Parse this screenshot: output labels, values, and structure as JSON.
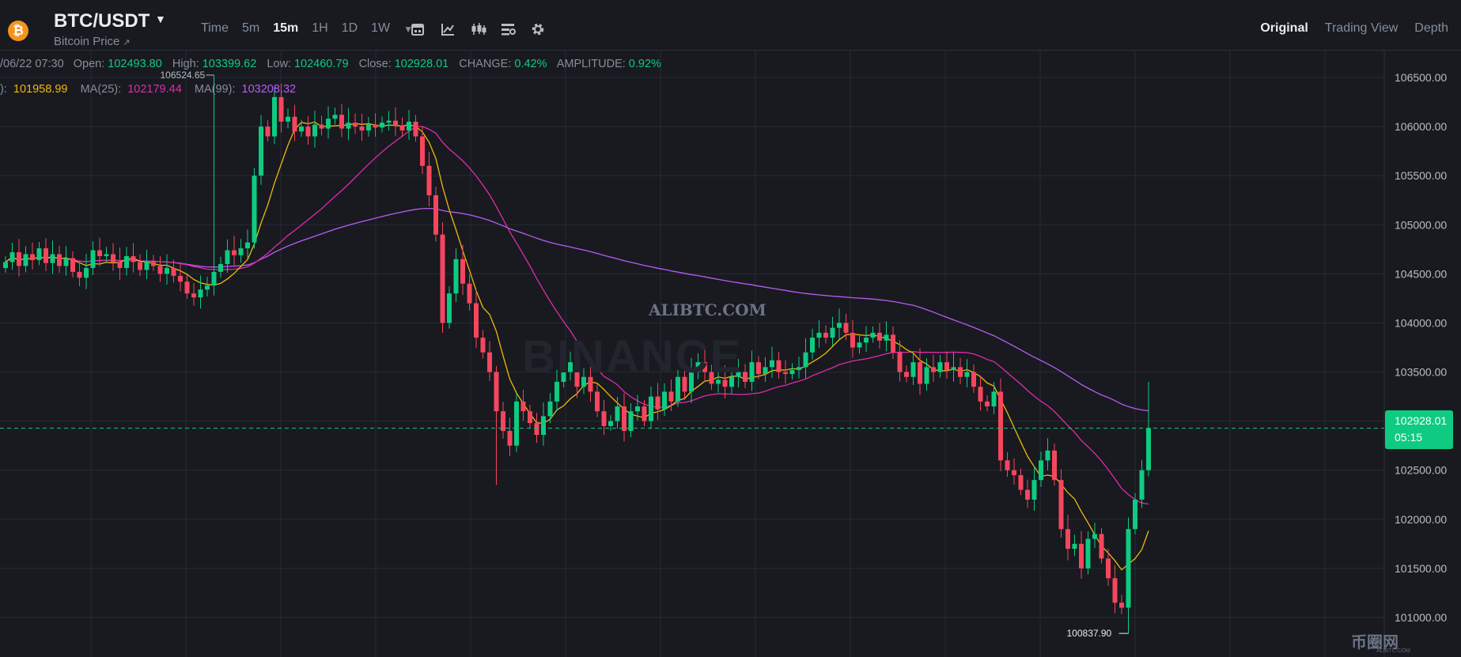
{
  "header": {
    "logo_glyph": "₿",
    "pair": "BTC/USDT",
    "subtitle": "Bitcoin Price",
    "subtitle_arrow": "↗",
    "intervals": [
      "Time",
      "5m",
      "15m",
      "1H",
      "1D",
      "1W"
    ],
    "active_interval": "15m",
    "tool_icons": [
      "calendar-icon",
      "indicator-chart-icon",
      "candlestick-type-icon",
      "layout-settings-icon",
      "gear-icon"
    ],
    "views": [
      "Original",
      "Trading View",
      "Depth"
    ],
    "active_view": "Original"
  },
  "ohlc": {
    "date": "/06/22 07:30",
    "open_label": "Open:",
    "open": "102493.80",
    "high_label": "High:",
    "high": "103399.62",
    "low_label": "Low:",
    "low": "102460.79",
    "close_label": "Close:",
    "close": "102928.01",
    "change_label": "CHANGE:",
    "change": "0.42%",
    "amplitude_label": "AMPLITUDE:",
    "amplitude": "0.92%"
  },
  "ma_row": {
    "ma7_prefix": "):",
    "ma7": "101958.99",
    "ma25_label": "MA(25):",
    "ma25": "102179.44",
    "ma99_label": "MA(99):",
    "ma99": "103208.32"
  },
  "price_tag": {
    "price": "102928.01",
    "countdown": "05:15"
  },
  "watermark": {
    "site": "ALIBTC.COM",
    "brand": "BINANCE"
  },
  "corner_logo": {
    "text": "币圈网",
    "sub": "ALIBTC.COM"
  },
  "colors": {
    "up": "#0ecb81",
    "down": "#f6465d",
    "ma7": "#f0b90b",
    "ma25": "#e02bab",
    "ma99": "#b85cf5",
    "background": "#181a20",
    "grid": "#262a33"
  },
  "chart_data": {
    "type": "candlestick",
    "interval": "15m",
    "ylim": [
      100700,
      106800
    ],
    "y_ticks": [
      101000,
      101500,
      102000,
      102500,
      103000,
      103500,
      104000,
      104500,
      105000,
      105500,
      106000,
      106500
    ],
    "y_tick_labels": [
      "101000.00",
      "101500.00",
      "102000.00",
      "102500.00",
      "103000.00",
      "103500.00",
      "104000.00",
      "104500.00",
      "105000.00",
      "105500.00",
      "106000.00",
      "106500.00"
    ],
    "annotations": {
      "high_label": "106524.65",
      "high_value": 106524.65,
      "low_label": "100837.90",
      "low_value": 100837.9
    },
    "current_price": 102928.01,
    "close_path": [
      104620,
      104720,
      104580,
      104700,
      104640,
      104760,
      104610,
      104700,
      104580,
      104660,
      104520,
      104460,
      104560,
      104740,
      104680,
      104700,
      104620,
      104560,
      104680,
      104620,
      104540,
      104630,
      104580,
      104500,
      104560,
      104480,
      104420,
      104300,
      104260,
      104340,
      104380,
      104520,
      104600,
      104740,
      104690,
      104760,
      104820,
      105500,
      106000,
      105900,
      106300,
      106050,
      106100,
      105950,
      106000,
      105900,
      106020,
      105980,
      106080,
      106120,
      105980,
      106040,
      106000,
      105960,
      106020,
      105990,
      106040,
      106060,
      106010,
      105960,
      106050,
      105900,
      105600,
      105300,
      104900,
      104000,
      104300,
      104650,
      104400,
      104200,
      103850,
      103700,
      103500,
      103100,
      102900,
      102750,
      103200,
      103100,
      102980,
      102860,
      103050,
      103200,
      103400,
      103500,
      103600,
      103350,
      103450,
      103300,
      103100,
      102950,
      103000,
      103150,
      102900,
      103100,
      103150,
      103000,
      103250,
      103120,
      103300,
      103200,
      103450,
      103300,
      103500,
      103600,
      103500,
      103380,
      103420,
      103350,
      103450,
      103500,
      103400,
      103600,
      103480,
      103550,
      103620,
      103500,
      103480,
      103520,
      103550,
      103700,
      103850,
      103900,
      103850,
      103950,
      104000,
      103900,
      103750,
      103800,
      103850,
      103900,
      103820,
      103880,
      103700,
      103500,
      103450,
      103600,
      103380,
      103550,
      103500,
      103600,
      103520,
      103550,
      103450,
      103500,
      103350,
      103200,
      103150,
      103300,
      102600,
      102500,
      102450,
      102300,
      102200,
      102400,
      102600,
      102700,
      102400,
      101900,
      101700,
      101750,
      101500,
      101800,
      101850,
      101600,
      101400,
      101150,
      101100,
      101900,
      102200,
      102500,
      102928
    ]
  }
}
